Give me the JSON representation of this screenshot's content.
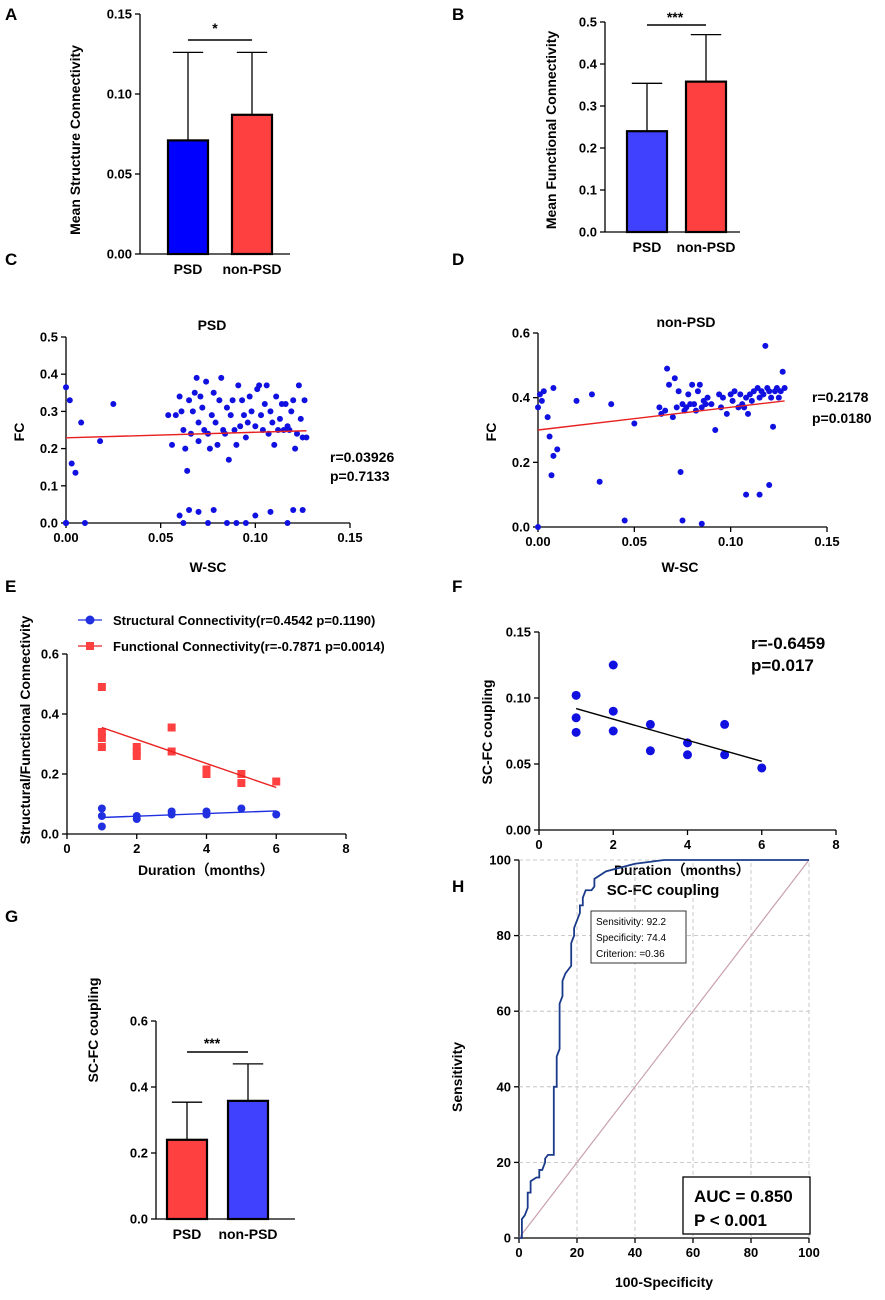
{
  "colors": {
    "blue": "#0000ff",
    "red": "#ff4040",
    "scatter_blue": "#1010e0",
    "fit_red": "#e82020",
    "roc_line": "#1a3a8a",
    "diag": "#c8a0b0",
    "grid": "#bbbbbb"
  },
  "chart_data": [
    {
      "panel": "A",
      "type": "bar",
      "ylabel": "Mean Structure Connectivity",
      "categories": [
        "PSD",
        "non-PSD"
      ],
      "values": [
        0.071,
        0.087
      ],
      "errors": [
        0.055,
        0.039
      ],
      "bar_colors": [
        "#0000ff",
        "#ff4040"
      ],
      "ylim": [
        0,
        0.15
      ],
      "yticks": [
        0,
        0.05,
        0.1,
        0.15
      ],
      "ytick_labels": [
        "0.00",
        "0.05",
        "0.10",
        "0.15"
      ],
      "significance": "*"
    },
    {
      "panel": "B",
      "type": "bar",
      "ylabel": "Mean Functional  Connectivity",
      "categories": [
        "PSD",
        "non-PSD"
      ],
      "values": [
        0.24,
        0.358
      ],
      "errors": [
        0.114,
        0.112
      ],
      "bar_colors": [
        "#4040ff",
        "#ff4040"
      ],
      "ylim": [
        0,
        0.5
      ],
      "yticks": [
        0,
        0.1,
        0.2,
        0.3,
        0.4,
        0.5
      ],
      "ytick_labels": [
        "0.0",
        "0.1",
        "0.2",
        "0.3",
        "0.4",
        "0.5"
      ],
      "significance": "***"
    },
    {
      "panel": "C",
      "type": "scatter",
      "title": "PSD",
      "xlabel": "W-SC",
      "ylabel": "FC",
      "xlim": [
        0,
        0.15
      ],
      "ylim": [
        0,
        0.5
      ],
      "xticks": [
        0,
        0.05,
        0.1,
        0.15
      ],
      "xtick_labels": [
        "0.00",
        "0.05",
        "0.10",
        "0.15"
      ],
      "yticks": [
        0,
        0.1,
        0.2,
        0.3,
        0.4,
        0.5
      ],
      "ytick_labels": [
        "0.0",
        "0.1",
        "0.2",
        "0.3",
        "0.4",
        "0.5"
      ],
      "x": [
        0.0,
        0.002,
        0.003,
        0.0,
        0.005,
        0.008,
        0.018,
        0.025,
        0.0,
        0.01,
        0.054,
        0.056,
        0.058,
        0.06,
        0.061,
        0.062,
        0.063,
        0.064,
        0.065,
        0.066,
        0.067,
        0.068,
        0.069,
        0.07,
        0.07,
        0.071,
        0.072,
        0.073,
        0.074,
        0.075,
        0.076,
        0.077,
        0.078,
        0.079,
        0.08,
        0.081,
        0.082,
        0.083,
        0.084,
        0.085,
        0.086,
        0.087,
        0.088,
        0.089,
        0.09,
        0.091,
        0.092,
        0.093,
        0.094,
        0.095,
        0.096,
        0.097,
        0.098,
        0.1,
        0.101,
        0.102,
        0.103,
        0.104,
        0.105,
        0.106,
        0.107,
        0.108,
        0.109,
        0.11,
        0.111,
        0.112,
        0.113,
        0.114,
        0.115,
        0.116,
        0.117,
        0.118,
        0.119,
        0.12,
        0.121,
        0.122,
        0.123,
        0.124,
        0.125,
        0.126,
        0.127,
        0.06,
        0.065,
        0.07,
        0.075,
        0.085,
        0.09,
        0.1,
        0.108,
        0.12,
        0.125,
        0.062,
        0.078,
        0.095,
        0.117,
        0.0
      ],
      "y": [
        0.365,
        0.33,
        0.16,
        0.0,
        0.135,
        0.27,
        0.22,
        0.32,
        0.0,
        0.0,
        0.29,
        0.21,
        0.29,
        0.34,
        0.3,
        0.25,
        0.2,
        0.14,
        0.33,
        0.24,
        0.3,
        0.35,
        0.39,
        0.27,
        0.22,
        0.34,
        0.31,
        0.25,
        0.38,
        0.24,
        0.2,
        0.29,
        0.35,
        0.27,
        0.21,
        0.33,
        0.39,
        0.25,
        0.24,
        0.31,
        0.17,
        0.29,
        0.33,
        0.25,
        0.21,
        0.37,
        0.26,
        0.33,
        0.29,
        0.23,
        0.27,
        0.34,
        0.3,
        0.26,
        0.36,
        0.37,
        0.29,
        0.25,
        0.32,
        0.37,
        0.24,
        0.3,
        0.27,
        0.21,
        0.34,
        0.25,
        0.28,
        0.32,
        0.25,
        0.32,
        0.26,
        0.25,
        0.3,
        0.33,
        0.2,
        0.24,
        0.37,
        0.28,
        0.23,
        0.33,
        0.23,
        0.02,
        0.035,
        0.03,
        0.0,
        0.0,
        0.0,
        0.02,
        0.03,
        0.035,
        0.035,
        0.0,
        0.035,
        0.0,
        0.0,
        0.0
      ],
      "fit": {
        "x": [
          0,
          0.127
        ],
        "y": [
          0.229,
          0.248
        ]
      },
      "r_label": "r=0.03926",
      "p_label": "p=0.7133"
    },
    {
      "panel": "D",
      "type": "scatter",
      "title": "non-PSD",
      "xlabel": "W-SC",
      "ylabel": "FC",
      "xlim": [
        0,
        0.15
      ],
      "ylim": [
        0,
        0.6
      ],
      "xticks": [
        0,
        0.05,
        0.1,
        0.15
      ],
      "xtick_labels": [
        "0.00",
        "0.05",
        "0.10",
        "0.15"
      ],
      "yticks": [
        0,
        0.2,
        0.4,
        0.6
      ],
      "ytick_labels": [
        "0.0",
        "0.2",
        "0.4",
        "0.6"
      ],
      "x": [
        0.0,
        0.001,
        0.002,
        0.003,
        0.005,
        0.006,
        0.007,
        0.008,
        0.008,
        0.01,
        0.02,
        0.028,
        0.032,
        0.038,
        0.045,
        0.05,
        0.063,
        0.064,
        0.066,
        0.067,
        0.068,
        0.07,
        0.071,
        0.072,
        0.073,
        0.074,
        0.075,
        0.076,
        0.077,
        0.078,
        0.079,
        0.08,
        0.081,
        0.082,
        0.083,
        0.084,
        0.085,
        0.086,
        0.087,
        0.088,
        0.09,
        0.092,
        0.094,
        0.095,
        0.096,
        0.098,
        0.1,
        0.101,
        0.102,
        0.104,
        0.105,
        0.106,
        0.107,
        0.108,
        0.109,
        0.11,
        0.111,
        0.112,
        0.114,
        0.115,
        0.116,
        0.117,
        0.118,
        0.119,
        0.12,
        0.121,
        0.122,
        0.123,
        0.124,
        0.125,
        0.126,
        0.127,
        0.128,
        0.0,
        0.075,
        0.085,
        0.108,
        0.115,
        0.12
      ],
      "y": [
        0.37,
        0.41,
        0.39,
        0.42,
        0.34,
        0.28,
        0.16,
        0.43,
        0.22,
        0.24,
        0.39,
        0.41,
        0.14,
        0.38,
        0.02,
        0.32,
        0.37,
        0.35,
        0.36,
        0.49,
        0.44,
        0.34,
        0.46,
        0.37,
        0.42,
        0.17,
        0.38,
        0.36,
        0.37,
        0.41,
        0.38,
        0.44,
        0.38,
        0.36,
        0.42,
        0.44,
        0.37,
        0.39,
        0.38,
        0.4,
        0.38,
        0.3,
        0.41,
        0.37,
        0.4,
        0.35,
        0.41,
        0.39,
        0.42,
        0.37,
        0.41,
        0.38,
        0.37,
        0.4,
        0.35,
        0.41,
        0.39,
        0.42,
        0.43,
        0.4,
        0.42,
        0.41,
        0.56,
        0.43,
        0.42,
        0.4,
        0.31,
        0.42,
        0.43,
        0.4,
        0.42,
        0.48,
        0.43,
        0.0,
        0.02,
        0.01,
        0.1,
        0.1,
        0.13
      ],
      "fit": {
        "x": [
          0,
          0.128
        ],
        "y": [
          0.3,
          0.39
        ]
      },
      "r_label": "r=0.2178",
      "p_label": "p=0.0180"
    },
    {
      "panel": "E",
      "type": "scatter",
      "xlabel": "Duration（months）",
      "ylabel": "Structural/Functional Connectivity",
      "xlim": [
        0,
        8
      ],
      "ylim": [
        0,
        0.6
      ],
      "xticks": [
        0,
        2,
        4,
        6,
        8
      ],
      "xtick_labels": [
        "0",
        "2",
        "4",
        "6",
        "8"
      ],
      "yticks": [
        0,
        0.2,
        0.4,
        0.6
      ],
      "ytick_labels": [
        "0.0",
        "0.2",
        "0.4",
        "0.6"
      ],
      "series": [
        {
          "name": "Structural Connectivity(r=0.4542 p=0.1190)",
          "marker": "circle",
          "x": [
            1,
            1,
            1,
            2,
            2,
            3,
            3,
            4,
            4,
            5,
            6
          ],
          "y": [
            0.085,
            0.06,
            0.025,
            0.06,
            0.05,
            0.075,
            0.065,
            0.075,
            0.065,
            0.085,
            0.065
          ],
          "fit": {
            "x": [
              1,
              6
            ],
            "y": [
              0.055,
              0.077
            ]
          }
        },
        {
          "name": "Functional Connectivity(r=-0.7871 p=0.0014)",
          "marker": "square",
          "x": [
            1,
            1,
            1,
            1,
            2,
            2,
            2,
            3,
            3,
            4,
            4,
            5,
            5,
            6
          ],
          "y": [
            0.49,
            0.34,
            0.32,
            0.29,
            0.29,
            0.275,
            0.26,
            0.355,
            0.275,
            0.215,
            0.2,
            0.2,
            0.17,
            0.175
          ],
          "fit": {
            "x": [
              1,
              6
            ],
            "y": [
              0.355,
              0.155
            ]
          }
        }
      ]
    },
    {
      "panel": "F",
      "type": "scatter",
      "xlabel": "Duration（months）",
      "ylabel": "SC-FC coupling",
      "xlim": [
        0,
        8
      ],
      "ylim": [
        0,
        0.15
      ],
      "xticks": [
        0,
        2,
        4,
        6,
        8
      ],
      "xtick_labels": [
        "0",
        "2",
        "4",
        "6",
        "8"
      ],
      "yticks": [
        0,
        0.05,
        0.1,
        0.15
      ],
      "ytick_labels": [
        "0.00",
        "0.05",
        "0.10",
        "0.15"
      ],
      "x": [
        1,
        1,
        1,
        2,
        2,
        2,
        3,
        3,
        4,
        4,
        5,
        5,
        6
      ],
      "y": [
        0.102,
        0.085,
        0.074,
        0.125,
        0.09,
        0.075,
        0.08,
        0.06,
        0.066,
        0.057,
        0.08,
        0.057,
        0.047
      ],
      "fit": {
        "x": [
          1,
          6
        ],
        "y": [
          0.092,
          0.052
        ]
      },
      "r_label": "r=-0.6459",
      "p_label": "p=0.017"
    },
    {
      "panel": "G",
      "type": "bar",
      "ylabel": "SC-FC coupling",
      "categories": [
        "PSD",
        "non-PSD"
      ],
      "values": [
        0.24,
        0.358
      ],
      "errors": [
        0.114,
        0.112
      ],
      "bar_colors": [
        "#ff4040",
        "#4040ff"
      ],
      "ylim": [
        0,
        0.6
      ],
      "yticks": [
        0,
        0.2,
        0.4,
        0.6
      ],
      "ytick_labels": [
        "0.0",
        "0.2",
        "0.4",
        "0.6"
      ],
      "significance": "***"
    },
    {
      "panel": "H",
      "type": "line",
      "title": "SC-FC coupling",
      "xlabel": "100-Specificity",
      "ylabel": "Sensitivity",
      "xlim": [
        0,
        100
      ],
      "ylim": [
        0,
        100
      ],
      "xticks": [
        0,
        20,
        40,
        60,
        80,
        100
      ],
      "xtick_labels": [
        "0",
        "20",
        "40",
        "60",
        "80",
        "100"
      ],
      "yticks": [
        0,
        20,
        40,
        60,
        80,
        100
      ],
      "ytick_labels": [
        "0",
        "20",
        "40",
        "60",
        "80",
        "100"
      ],
      "roc_x": [
        0,
        1,
        1,
        2,
        3,
        3,
        4,
        4,
        6,
        7,
        7,
        8,
        9,
        9,
        10,
        11,
        12,
        12,
        13,
        13,
        14,
        14,
        15,
        15,
        16,
        17,
        18,
        18,
        19,
        19,
        20,
        21,
        21,
        22,
        22,
        23,
        25,
        26,
        26,
        30,
        40,
        50,
        100
      ],
      "roc_y": [
        0,
        0,
        5,
        6,
        8,
        12,
        12,
        15,
        16,
        16,
        18,
        18,
        20,
        21,
        22,
        22,
        22,
        40,
        40,
        48,
        50,
        62,
        64,
        68,
        70,
        71,
        72,
        78,
        80,
        82,
        84,
        86,
        88,
        88,
        90,
        92,
        92,
        93,
        95,
        97,
        99,
        100,
        100
      ],
      "annotation": [
        "Sensitivity: 92.2",
        "Specificity: 74.4",
        "Criterion: =0.36"
      ],
      "auc_label": "AUC = 0.850",
      "p_label": "P < 0.001"
    }
  ]
}
